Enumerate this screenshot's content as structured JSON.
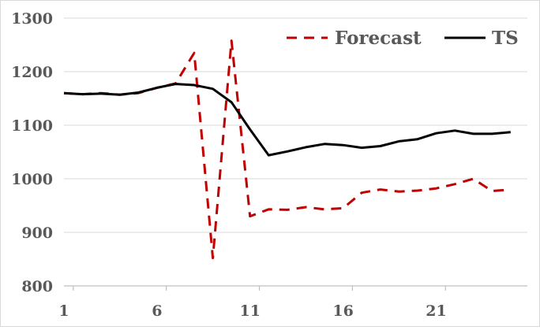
{
  "chart_data": {
    "type": "line",
    "title": "",
    "xlabel": "",
    "ylabel": "",
    "x": [
      1,
      2,
      3,
      4,
      5,
      6,
      7,
      8,
      9,
      10,
      11,
      12,
      13,
      14,
      15,
      16,
      17,
      18,
      19,
      20,
      21,
      22,
      23,
      24,
      25
    ],
    "xticks": [
      "1",
      "6",
      "11",
      "16",
      "21"
    ],
    "ylim": [
      800,
      1300
    ],
    "yticks": [
      "800",
      "900",
      "1000",
      "1100",
      "1200",
      "1300"
    ],
    "grid": true,
    "legend_position": "top-right",
    "series": [
      {
        "name": "Forecast",
        "style": "dashed",
        "color": "#c00000",
        "values": [
          1160,
          1158,
          1160,
          1157,
          1160,
          1170,
          1178,
          1235,
          852,
          1258,
          930,
          943,
          942,
          947,
          943,
          945,
          974,
          980,
          976,
          978,
          982,
          990,
          1000,
          977,
          980
        ]
      },
      {
        "name": "TS",
        "style": "solid",
        "color": "#000000",
        "values": [
          1160,
          1158,
          1159,
          1157,
          1161,
          1170,
          1177,
          1175,
          1168,
          1143,
          1092,
          1044,
          1051,
          1059,
          1065,
          1063,
          1058,
          1061,
          1070,
          1074,
          1085,
          1090,
          1084,
          1084,
          1087
        ]
      }
    ]
  }
}
